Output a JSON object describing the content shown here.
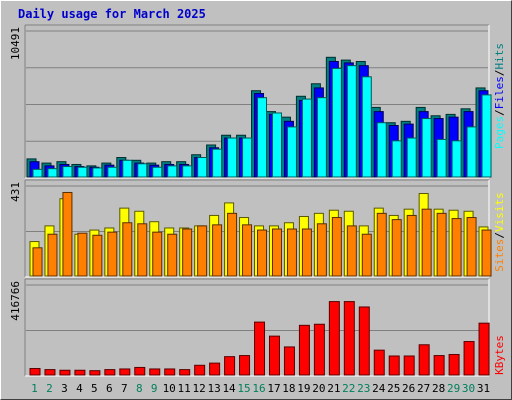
{
  "title": "Daily usage for March 2025",
  "colors": {
    "hits": "#008080",
    "files": "#0000ff",
    "pages": "#00ffff",
    "visits": "#ffff00",
    "sites": "#ff8000",
    "kbytes": "#ff0000",
    "weekday_label": "#000000",
    "weekend_label": "#00805c",
    "title": "#0000cc"
  },
  "chart_data": [
    {
      "type": "bar",
      "panel": "hits-files-pages",
      "categories": [
        "1",
        "2",
        "3",
        "4",
        "5",
        "6",
        "7",
        "8",
        "9",
        "10",
        "11",
        "12",
        "13",
        "14",
        "15",
        "16",
        "17",
        "18",
        "19",
        "20",
        "21",
        "22",
        "23",
        "24",
        "25",
        "26",
        "27",
        "28",
        "29",
        "30",
        "31"
      ],
      "ylabel_parts": [
        "Pages",
        "Files",
        "Hits"
      ],
      "ymax_label": "10491",
      "ylim": [
        0,
        10491
      ],
      "series": [
        {
          "name": "Hits",
          "values": [
            1300,
            1000,
            1100,
            900,
            800,
            1000,
            1400,
            1200,
            1000,
            1100,
            1100,
            1600,
            2300,
            3000,
            3000,
            6200,
            4700,
            4300,
            5800,
            6700,
            8600,
            8400,
            8300,
            5000,
            3900,
            4000,
            5000,
            4400,
            4500,
            4900,
            6400
          ]
        },
        {
          "name": "Files",
          "values": [
            1100,
            800,
            900,
            750,
            700,
            850,
            1200,
            1000,
            850,
            900,
            900,
            1400,
            2100,
            2800,
            2800,
            6000,
            4500,
            4000,
            5500,
            6400,
            8300,
            8200,
            8000,
            4700,
            3700,
            3800,
            4700,
            4200,
            4300,
            4700,
            6200
          ]
        },
        {
          "name": "Pages",
          "values": [
            550,
            600,
            750,
            700,
            650,
            700,
            1200,
            950,
            700,
            800,
            800,
            1400,
            2000,
            2800,
            2800,
            5700,
            4600,
            3600,
            5600,
            5700,
            7800,
            8000,
            7200,
            3900,
            2600,
            2800,
            4200,
            2700,
            2600,
            3600,
            5900
          ]
        }
      ]
    },
    {
      "type": "bar",
      "panel": "visits-sites",
      "categories": [
        "1",
        "2",
        "3",
        "4",
        "5",
        "6",
        "7",
        "8",
        "9",
        "10",
        "11",
        "12",
        "13",
        "14",
        "15",
        "16",
        "17",
        "18",
        "19",
        "20",
        "21",
        "22",
        "23",
        "24",
        "25",
        "26",
        "27",
        "28",
        "29",
        "30",
        "31"
      ],
      "ylabel_parts": [
        "Sites",
        "Visits"
      ],
      "ymax_label": "431",
      "ylim": [
        0,
        431
      ],
      "series": [
        {
          "name": "Visits",
          "values": [
            165,
            240,
            370,
            200,
            220,
            230,
            325,
            310,
            260,
            230,
            230,
            240,
            290,
            350,
            280,
            240,
            240,
            255,
            285,
            300,
            315,
            310,
            240,
            325,
            290,
            320,
            395,
            320,
            315,
            310,
            235
          ]
        },
        {
          "name": "Sites",
          "values": [
            135,
            200,
            400,
            205,
            195,
            210,
            255,
            250,
            210,
            200,
            225,
            240,
            245,
            300,
            245,
            220,
            225,
            225,
            225,
            250,
            280,
            240,
            200,
            300,
            270,
            290,
            320,
            300,
            275,
            280,
            220
          ]
        }
      ]
    },
    {
      "type": "bar",
      "panel": "kbytes",
      "categories": [
        "1",
        "2",
        "3",
        "4",
        "5",
        "6",
        "7",
        "8",
        "9",
        "10",
        "11",
        "12",
        "13",
        "14",
        "15",
        "16",
        "17",
        "18",
        "19",
        "20",
        "21",
        "22",
        "23",
        "24",
        "25",
        "26",
        "27",
        "28",
        "29",
        "30",
        "31"
      ],
      "ylabel_parts": [
        "KBytes"
      ],
      "ymax_label": "416766",
      "ylim": [
        0,
        416766
      ],
      "series": [
        {
          "name": "KBytes",
          "values": [
            30000,
            25000,
            22000,
            22000,
            20000,
            25000,
            28000,
            35000,
            28000,
            28000,
            25000,
            45000,
            55000,
            85000,
            90000,
            245000,
            180000,
            130000,
            230000,
            235000,
            340000,
            340000,
            315000,
            115000,
            88000,
            88000,
            140000,
            90000,
            95000,
            155000,
            240000
          ]
        }
      ]
    }
  ]
}
